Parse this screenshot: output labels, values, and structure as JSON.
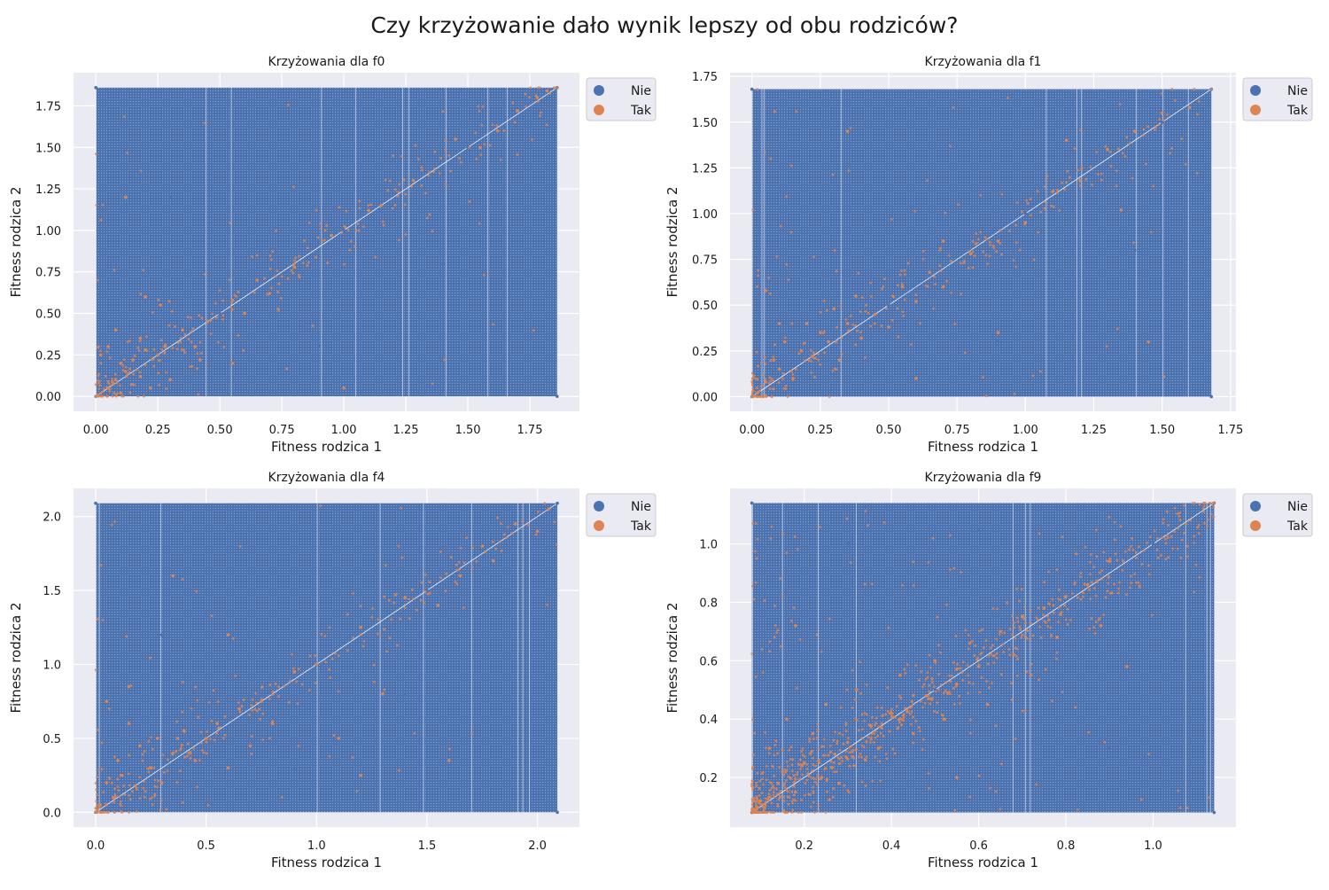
{
  "suptitle": "Czy krzyżowanie dało wynik lepszy od obu rodziców?",
  "colors": {
    "plot_bg": "#eaeaf2",
    "grid": "#ffffff",
    "nie": "#4c72b0",
    "tak": "#dd8452"
  },
  "chart_data": [
    {
      "type": "scatter",
      "title": "Krzyżowania dla f0",
      "xlabel": "Fitness rodzica 1",
      "ylabel": "Fitness rodzica 2",
      "xlim": [
        -0.09,
        1.95
      ],
      "ylim": [
        -0.09,
        1.95
      ],
      "xticks": [
        "0.00",
        "0.25",
        "0.50",
        "0.75",
        "1.00",
        "1.25",
        "1.50",
        "1.75"
      ],
      "yticks": [
        "0.00",
        "0.25",
        "0.50",
        "0.75",
        "1.00",
        "1.25",
        "1.50",
        "1.75"
      ],
      "data_range": [
        0.0,
        1.86
      ],
      "legend": {
        "position": "outside-top-right",
        "entries": [
          "Nie",
          "Tak"
        ]
      },
      "grid": true,
      "series": [
        {
          "name": "Nie",
          "description_range": [
            0.0,
            1.86
          ],
          "points": [
            [
              0.0,
              0.0
            ],
            [
              0.5,
              0.5
            ],
            [
              1.0,
              1.0
            ],
            [
              1.5,
              1.5
            ],
            [
              1.86,
              1.86
            ],
            [
              0.0,
              1.86
            ],
            [
              1.86,
              0.0
            ],
            [
              0.9,
              0.3
            ],
            [
              0.3,
              1.2
            ],
            [
              1.4,
              0.8
            ]
          ]
        },
        {
          "name": "Tak",
          "points": [
            [
              0.02,
              0.25
            ],
            [
              0.05,
              0.05
            ],
            [
              0.08,
              0.1
            ],
            [
              0.1,
              0.02
            ],
            [
              0.12,
              0.15
            ],
            [
              0.15,
              0.22
            ],
            [
              0.18,
              0.12
            ],
            [
              0.2,
              0.28
            ],
            [
              0.22,
              0.05
            ],
            [
              0.25,
              0.25
            ],
            [
              0.28,
              0.3
            ],
            [
              0.05,
              0.3
            ],
            [
              0.1,
              0.2
            ],
            [
              0.3,
              0.1
            ],
            [
              0.18,
              0.35
            ],
            [
              0.35,
              0.4
            ],
            [
              0.4,
              0.3
            ],
            [
              0.45,
              0.45
            ],
            [
              0.55,
              0.58
            ],
            [
              0.6,
              0.5
            ],
            [
              0.65,
              0.7
            ],
            [
              0.7,
              0.62
            ],
            [
              0.8,
              0.78
            ],
            [
              0.95,
              0.97
            ],
            [
              1.1,
              1.12
            ],
            [
              1.15,
              1.15
            ],
            [
              1.28,
              1.3
            ],
            [
              1.45,
              1.55
            ],
            [
              1.55,
              1.5
            ],
            [
              1.62,
              1.6
            ],
            [
              1.7,
              1.72
            ],
            [
              1.78,
              1.8
            ],
            [
              1.82,
              1.84
            ],
            [
              0.26,
              0.55
            ],
            [
              0.2,
              0.6
            ],
            [
              0.55,
              0.2
            ],
            [
              0.12,
              1.2
            ],
            [
              1.0,
              0.05
            ],
            [
              0.42,
              0.22
            ],
            [
              0.08,
              0.4
            ]
          ]
        }
      ]
    },
    {
      "type": "scatter",
      "title": "Krzyżowania dla f1",
      "xlabel": "Fitness rodzica 1",
      "ylabel": "Fitness rodzica 2",
      "xlim": [
        -0.08,
        1.77
      ],
      "ylim": [
        -0.08,
        1.77
      ],
      "xticks": [
        "0.00",
        "0.25",
        "0.50",
        "0.75",
        "1.00",
        "1.25",
        "1.50",
        "1.75"
      ],
      "yticks": [
        "0.00",
        "0.25",
        "0.50",
        "0.75",
        "1.00",
        "1.25",
        "1.50",
        "1.75"
      ],
      "data_range": [
        0.0,
        1.68
      ],
      "legend": {
        "position": "outside-top-right",
        "entries": [
          "Nie",
          "Tak"
        ]
      },
      "grid": true,
      "series": [
        {
          "name": "Nie",
          "points": [
            [
              0.0,
              0.0
            ],
            [
              0.5,
              0.5
            ],
            [
              1.0,
              1.0
            ],
            [
              1.5,
              1.5
            ],
            [
              1.68,
              1.68
            ],
            [
              0.0,
              1.68
            ],
            [
              1.68,
              0.0
            ],
            [
              0.9,
              0.3
            ],
            [
              0.3,
              1.2
            ],
            [
              1.4,
              0.8
            ]
          ]
        },
        {
          "name": "Tak",
          "points": [
            [
              0.02,
              0.02
            ],
            [
              0.05,
              0.08
            ],
            [
              0.08,
              0.2
            ],
            [
              0.1,
              0.15
            ],
            [
              0.12,
              0.3
            ],
            [
              0.15,
              0.1
            ],
            [
              0.18,
              0.25
            ],
            [
              0.2,
              0.4
            ],
            [
              0.22,
              0.22
            ],
            [
              0.25,
              0.35
            ],
            [
              0.28,
              0.3
            ],
            [
              0.3,
              0.48
            ],
            [
              0.32,
              0.2
            ],
            [
              0.35,
              0.4
            ],
            [
              0.38,
              0.55
            ],
            [
              0.4,
              0.32
            ],
            [
              0.45,
              0.45
            ],
            [
              0.5,
              0.38
            ],
            [
              0.55,
              0.6
            ],
            [
              0.6,
              0.52
            ],
            [
              0.65,
              0.68
            ],
            [
              0.7,
              0.6
            ],
            [
              0.8,
              0.78
            ],
            [
              0.9,
              0.85
            ],
            [
              1.0,
              0.95
            ],
            [
              1.1,
              1.12
            ],
            [
              1.2,
              1.18
            ],
            [
              1.3,
              1.35
            ],
            [
              1.4,
              1.45
            ],
            [
              1.5,
              1.55
            ],
            [
              1.6,
              1.58
            ],
            [
              0.05,
              0.58
            ],
            [
              0.1,
              0.4
            ],
            [
              0.6,
              0.1
            ],
            [
              0.9,
              0.35
            ],
            [
              1.35,
              1.02
            ],
            [
              0.35,
              1.45
            ],
            [
              1.45,
              0.3
            ],
            [
              0.7,
              0.85
            ],
            [
              1.15,
              1.4
            ]
          ]
        }
      ]
    },
    {
      "type": "scatter",
      "title": "Krzyżowania dla f4",
      "xlabel": "Fitness rodzica 1",
      "ylabel": "Fitness rodzica 2",
      "xlim": [
        -0.1,
        2.19
      ],
      "ylim": [
        -0.1,
        2.19
      ],
      "xticks": [
        "0.0",
        "0.5",
        "1.0",
        "1.5",
        "2.0"
      ],
      "yticks": [
        "0.0",
        "0.5",
        "1.0",
        "1.5",
        "2.0"
      ],
      "data_range": [
        0.0,
        2.09
      ],
      "legend": {
        "position": "outside-top-right",
        "entries": [
          "Nie",
          "Tak"
        ]
      },
      "grid": true,
      "series": [
        {
          "name": "Nie",
          "points": [
            [
              0.0,
              0.0
            ],
            [
              0.5,
              0.5
            ],
            [
              1.0,
              1.0
            ],
            [
              1.5,
              1.5
            ],
            [
              2.09,
              2.09
            ],
            [
              0.0,
              2.09
            ],
            [
              2.09,
              0.0
            ],
            [
              0.9,
              0.3
            ],
            [
              0.3,
              1.2
            ],
            [
              1.4,
              0.8
            ]
          ]
        },
        {
          "name": "Tak",
          "points": [
            [
              0.02,
              0.05
            ],
            [
              0.05,
              0.2
            ],
            [
              0.08,
              0.1
            ],
            [
              0.1,
              0.35
            ],
            [
              0.12,
              0.25
            ],
            [
              0.15,
              0.6
            ],
            [
              0.18,
              0.18
            ],
            [
              0.2,
              0.45
            ],
            [
              0.25,
              0.3
            ],
            [
              0.28,
              0.5
            ],
            [
              0.3,
              0.2
            ],
            [
              0.35,
              0.4
            ],
            [
              0.4,
              0.55
            ],
            [
              0.45,
              0.35
            ],
            [
              0.5,
              0.5
            ],
            [
              0.55,
              0.6
            ],
            [
              0.6,
              0.3
            ],
            [
              0.65,
              0.7
            ],
            [
              0.7,
              0.45
            ],
            [
              0.75,
              0.75
            ],
            [
              0.8,
              0.6
            ],
            [
              0.9,
              0.95
            ],
            [
              1.0,
              1.0
            ],
            [
              1.1,
              0.5
            ],
            [
              1.2,
              1.25
            ],
            [
              1.3,
              0.8
            ],
            [
              1.4,
              1.45
            ],
            [
              1.55,
              1.4
            ],
            [
              1.65,
              1.6
            ],
            [
              1.75,
              1.8
            ],
            [
              1.8,
              1.7
            ],
            [
              1.9,
              1.95
            ],
            [
              2.0,
              1.9
            ],
            [
              0.05,
              0.75
            ],
            [
              0.15,
              0.85
            ],
            [
              0.6,
              1.2
            ],
            [
              1.2,
              0.25
            ],
            [
              0.35,
              1.6
            ],
            [
              1.6,
              0.35
            ],
            [
              2.05,
              2.05
            ]
          ]
        }
      ]
    },
    {
      "type": "scatter",
      "title": "Krzyżowania dla f9",
      "xlabel": "Fitness rodzica 1",
      "ylabel": "Fitness rodzica 2",
      "xlim": [
        0.03,
        1.19
      ],
      "ylim": [
        0.03,
        1.19
      ],
      "xticks": [
        "0.2",
        "0.4",
        "0.6",
        "0.8",
        "1.0"
      ],
      "yticks": [
        "0.2",
        "0.4",
        "0.6",
        "0.8",
        "1.0"
      ],
      "data_range": [
        0.08,
        1.14
      ],
      "legend": {
        "position": "outside-top-right",
        "entries": [
          "Nie",
          "Tak"
        ]
      },
      "grid": true,
      "series": [
        {
          "name": "Nie",
          "points": [
            [
              0.08,
              0.08
            ],
            [
              0.5,
              0.5
            ],
            [
              1.0,
              1.0
            ],
            [
              1.14,
              1.14
            ],
            [
              0.08,
              1.14
            ],
            [
              1.14,
              0.08
            ],
            [
              0.9,
              0.3
            ],
            [
              0.3,
              1.0
            ],
            [
              1.05,
              0.6
            ],
            [
              0.6,
              1.05
            ]
          ]
        },
        {
          "name": "Tak",
          "points": [
            [
              0.1,
              0.12
            ],
            [
              0.12,
              0.3
            ],
            [
              0.14,
              0.18
            ],
            [
              0.15,
              0.22
            ],
            [
              0.16,
              0.4
            ],
            [
              0.18,
              0.15
            ],
            [
              0.2,
              0.25
            ],
            [
              0.22,
              0.35
            ],
            [
              0.24,
              0.2
            ],
            [
              0.25,
              0.45
            ],
            [
              0.27,
              0.28
            ],
            [
              0.28,
              0.18
            ],
            [
              0.3,
              0.32
            ],
            [
              0.32,
              0.5
            ],
            [
              0.34,
              0.26
            ],
            [
              0.35,
              0.38
            ],
            [
              0.37,
              0.3
            ],
            [
              0.4,
              0.42
            ],
            [
              0.42,
              0.55
            ],
            [
              0.45,
              0.35
            ],
            [
              0.48,
              0.48
            ],
            [
              0.5,
              0.6
            ],
            [
              0.52,
              0.4
            ],
            [
              0.55,
              0.52
            ],
            [
              0.58,
              0.66
            ],
            [
              0.6,
              0.58
            ],
            [
              0.62,
              0.45
            ],
            [
              0.65,
              0.7
            ],
            [
              0.68,
              0.62
            ],
            [
              0.7,
              0.75
            ],
            [
              0.72,
              0.55
            ],
            [
              0.75,
              0.78
            ],
            [
              0.78,
              0.68
            ],
            [
              0.8,
              0.82
            ],
            [
              0.85,
              0.86
            ],
            [
              0.88,
              0.72
            ],
            [
              0.9,
              0.94
            ],
            [
              0.94,
              0.58
            ],
            [
              0.18,
              0.72
            ],
            [
              0.55,
              0.2
            ]
          ]
        }
      ]
    }
  ]
}
